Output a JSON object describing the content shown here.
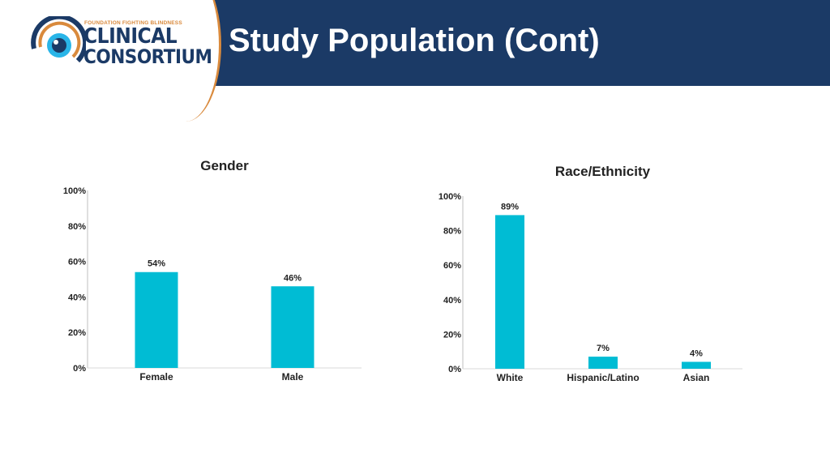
{
  "header": {
    "title": "Study Population (Cont)",
    "logo_small": "FOUNDATION FIGHTING BLINDNESS",
    "logo_line1": "CLINICAL",
    "logo_line2": "CONSORTIUM"
  },
  "colors": {
    "header_bg": "#1b3a66",
    "accent_orange": "#d98a3d",
    "bar": "#00bcd4",
    "text": "#000000"
  },
  "chart_data": [
    {
      "type": "bar",
      "title": "Gender",
      "categories": [
        "Female",
        "Male"
      ],
      "values": [
        54,
        46
      ],
      "labels": [
        "54%",
        "46%"
      ],
      "yticks": [
        "0%",
        "20%",
        "40%",
        "60%",
        "80%",
        "100%"
      ],
      "ylim": [
        0,
        100
      ],
      "grid": false
    },
    {
      "type": "bar",
      "title": "Race/Ethnicity",
      "categories": [
        "White",
        "Hispanic/Latino",
        "Asian"
      ],
      "values": [
        89,
        7,
        4
      ],
      "labels": [
        "89%",
        "7%",
        "4%"
      ],
      "yticks": [
        "0%",
        "20%",
        "40%",
        "60%",
        "80%",
        "100%"
      ],
      "ylim": [
        0,
        100
      ],
      "grid": false
    }
  ]
}
